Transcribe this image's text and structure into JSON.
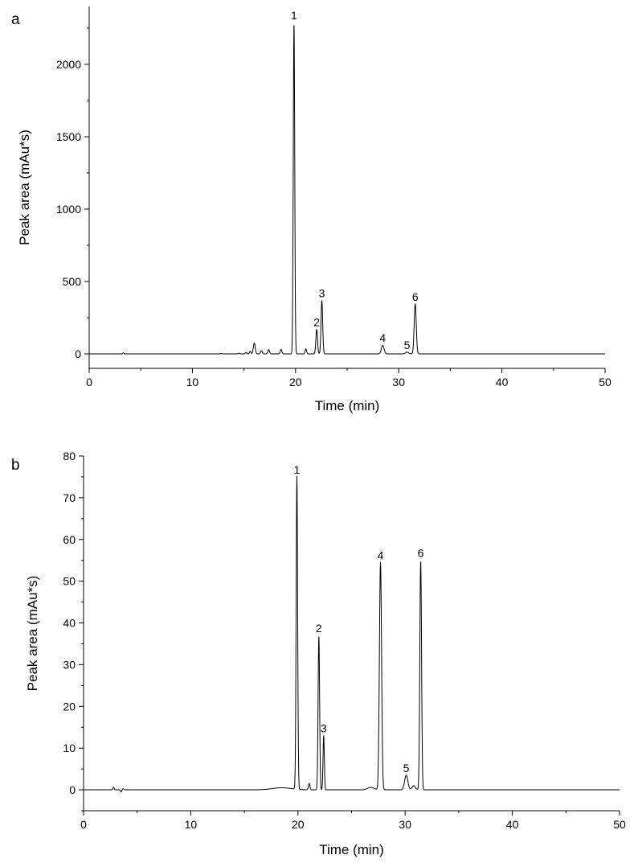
{
  "chart_data": [
    {
      "type": "line",
      "panel_label": "a",
      "xlabel": "Time (min)",
      "ylabel": "Peak area (mAu*s)",
      "xlim": [
        0,
        50
      ],
      "ylim": [
        -100,
        2400
      ],
      "x_ticks": [
        0,
        10,
        20,
        30,
        40,
        50
      ],
      "y_ticks": [
        0,
        500,
        1000,
        1500,
        2000
      ],
      "grid": false,
      "baseline_end": 50,
      "peaks": [
        {
          "x": 3.3,
          "y": 8,
          "w": 0.05
        },
        {
          "x": 12.8,
          "y": 3,
          "w": 0.06
        },
        {
          "x": 14.5,
          "y": 5,
          "w": 0.07
        },
        {
          "x": 15.2,
          "y": 10,
          "w": 0.07
        },
        {
          "x": 15.6,
          "y": 18,
          "w": 0.07
        },
        {
          "x": 16.0,
          "y": 75,
          "w": 0.09
        },
        {
          "x": 16.7,
          "y": 22,
          "w": 0.08
        },
        {
          "x": 17.4,
          "y": 30,
          "w": 0.08
        },
        {
          "x": 18.6,
          "y": 30,
          "w": 0.08
        },
        {
          "x": 19.85,
          "y": 2290,
          "w": 0.07,
          "label": "1"
        },
        {
          "x": 21.0,
          "y": 35,
          "w": 0.07
        },
        {
          "x": 22.05,
          "y": 170,
          "w": 0.08,
          "label": "2"
        },
        {
          "x": 22.55,
          "y": 370,
          "w": 0.08,
          "label": "3"
        },
        {
          "x": 28.45,
          "y": 60,
          "w": 0.13,
          "label": "4"
        },
        {
          "x": 30.8,
          "y": 12,
          "w": 0.15,
          "label": "5"
        },
        {
          "x": 31.6,
          "y": 345,
          "w": 0.1,
          "label": "6"
        }
      ]
    },
    {
      "type": "line",
      "panel_label": "b",
      "xlabel": "Time (min)",
      "ylabel": "Peak area (mAu*s)",
      "xlim": [
        0,
        50
      ],
      "ylim": [
        -5,
        80
      ],
      "x_ticks": [
        0,
        10,
        20,
        30,
        40,
        50
      ],
      "y_ticks": [
        0,
        10,
        20,
        30,
        40,
        50,
        60,
        70,
        80
      ],
      "grid": false,
      "baseline_end": 50,
      "peaks": [
        {
          "x": 2.8,
          "y": 0.6,
          "w": 0.06
        },
        {
          "x": 3.5,
          "y": -0.5,
          "w": 0.05
        },
        {
          "x": 3.7,
          "y": 0.3,
          "w": 0.05
        },
        {
          "x": 18.5,
          "y": 0.5,
          "w": 0.9
        },
        {
          "x": 19.9,
          "y": 75,
          "w": 0.07,
          "label": "1"
        },
        {
          "x": 21.05,
          "y": 1.5,
          "w": 0.07
        },
        {
          "x": 21.95,
          "y": 37,
          "w": 0.07,
          "label": "2"
        },
        {
          "x": 22.4,
          "y": 13,
          "w": 0.06,
          "label": "3"
        },
        {
          "x": 26.8,
          "y": 0.6,
          "w": 0.3
        },
        {
          "x": 27.7,
          "y": 54.5,
          "w": 0.1,
          "label": "4"
        },
        {
          "x": 30.1,
          "y": 3.5,
          "w": 0.15,
          "label": "5"
        },
        {
          "x": 30.8,
          "y": 1.0,
          "w": 0.15
        },
        {
          "x": 31.45,
          "y": 55,
          "w": 0.08,
          "label": "6"
        }
      ]
    }
  ]
}
